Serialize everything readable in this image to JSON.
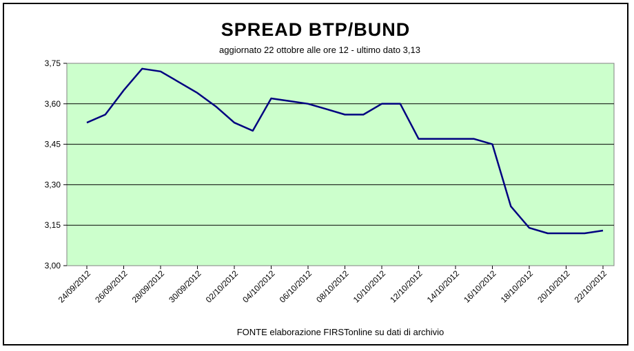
{
  "chart_data": {
    "type": "line",
    "title": "SPREAD  BTP/BUND",
    "subtitle": "aggiornato 22 ottobre alle ore 12 - ultimo dato 3,13",
    "source": "FONTE elaborazione FIRSTonline su dati di archivio",
    "xlabel": "",
    "ylabel": "",
    "ylim": [
      3.0,
      3.75
    ],
    "yticks": [
      "3,00",
      "3,15",
      "3,30",
      "3,45",
      "3,60",
      "3,75"
    ],
    "x_tick_labels": [
      "24/09/2012",
      "26/09/2012",
      "28/09/2012",
      "30/09/2012",
      "02/10/2012",
      "04/10/2012",
      "06/10/2012",
      "08/10/2012",
      "10/10/2012",
      "12/10/2012",
      "14/10/2012",
      "16/10/2012",
      "18/10/2012",
      "20/10/2012",
      "22/10/2012"
    ],
    "grid": "horizontal",
    "plot_area_color": "#CCFFCC",
    "line_color": "#000080",
    "series": [
      {
        "x": [
          "24/09/2012",
          "25/09/2012",
          "26/09/2012",
          "27/09/2012",
          "28/09/2012",
          "29/09/2012",
          "30/09/2012",
          "01/10/2012",
          "02/10/2012",
          "03/10/2012",
          "04/10/2012",
          "05/10/2012",
          "06/10/2012",
          "07/10/2012",
          "08/10/2012",
          "09/10/2012",
          "10/10/2012",
          "11/10/2012",
          "12/10/2012",
          "13/10/2012",
          "14/10/2012",
          "15/10/2012",
          "16/10/2012",
          "17/10/2012",
          "18/10/2012",
          "19/10/2012",
          "20/10/2012",
          "21/10/2012",
          "22/10/2012"
        ],
        "values": [
          3.53,
          3.56,
          3.65,
          3.73,
          3.72,
          3.68,
          3.64,
          3.59,
          3.53,
          3.5,
          3.62,
          3.61,
          3.6,
          3.58,
          3.56,
          3.56,
          3.6,
          3.6,
          3.47,
          3.47,
          3.47,
          3.47,
          3.45,
          3.22,
          3.14,
          3.12,
          3.12,
          3.12,
          3.13
        ]
      }
    ]
  }
}
